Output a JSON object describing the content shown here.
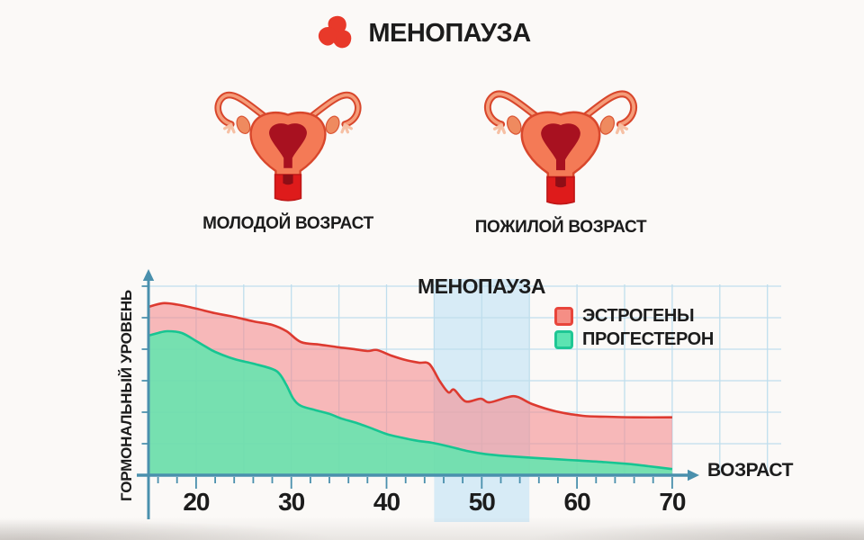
{
  "header": {
    "title": "МЕНОПАУЗА"
  },
  "illustrations": [
    {
      "label": "МОЛОДОЙ ВОЗРАСТ"
    },
    {
      "label": "ПОЖИЛОЙ ВОЗРАСТ"
    }
  ],
  "chart_data": {
    "type": "area",
    "title": "МЕНОПАУЗА",
    "xlabel": "ВОЗРАСТ",
    "ylabel": "ГОРМОНАЛЬНЫЙ УРОВЕНЬ",
    "x_ticks": [
      20,
      30,
      40,
      50,
      60,
      70
    ],
    "x_range": [
      15,
      70
    ],
    "y_range": [
      0,
      100
    ],
    "grid": true,
    "legend_position": "top-right",
    "annotation_band": {
      "label": "МЕНОПАУЗА",
      "from_age": 45,
      "to_age": 55
    },
    "legend": [
      {
        "label": "ЭСТРОГЕНЫ",
        "swatch_fill": "#f58e85",
        "swatch_border": "#e8453b"
      },
      {
        "label": "ПРОГЕСТЕРОН",
        "swatch_fill": "#5ce4b2",
        "swatch_border": "#1fc795"
      }
    ],
    "series": [
      {
        "name": "ЭСТРОГЕНЫ",
        "x": [
          15,
          16.5,
          18,
          20,
          22,
          24,
          26,
          28,
          29.5,
          31,
          33,
          35,
          36.5,
          38,
          39,
          40.5,
          42,
          43.4,
          44.5,
          45.6,
          46.5,
          47.1,
          48.3,
          49.9,
          50.8,
          52.8,
          53.8,
          55.3,
          57.8,
          60.6,
          63,
          66,
          70
        ],
        "values": [
          87.8,
          89.7,
          89.0,
          86.9,
          84.5,
          82.6,
          80.3,
          78.4,
          75.1,
          69.5,
          68.1,
          66.7,
          65.8,
          64.8,
          65.3,
          62.4,
          60.1,
          58.7,
          58.0,
          49.0,
          43.2,
          44.6,
          38.5,
          39.9,
          38.0,
          40.8,
          40.8,
          37.1,
          33.3,
          31.0,
          30.5,
          30.2,
          30.2
        ]
      },
      {
        "name": "ПРОГЕСТЕРОН",
        "x": [
          15,
          16,
          17,
          18.5,
          20,
          21,
          22,
          24,
          26,
          28,
          28.8,
          29.5,
          30.2,
          31,
          32.5,
          34,
          35.3,
          37,
          38.4,
          40,
          41.7,
          43.2,
          44.8,
          46.7,
          48.6,
          50.4,
          52.5,
          55,
          58,
          60,
          63,
          65.5,
          67.5,
          70
        ],
        "values": [
          72.8,
          74.2,
          75.1,
          74.2,
          70.0,
          67.1,
          64.3,
          60.6,
          58.2,
          55.4,
          52.6,
          46.9,
          40.0,
          36.2,
          34.0,
          32.0,
          29.5,
          27.0,
          24.5,
          21.5,
          19.5,
          18.0,
          16.9,
          14.8,
          12.5,
          11.0,
          10.0,
          9.2,
          8.3,
          7.7,
          6.8,
          5.8,
          4.7,
          3.2
        ]
      }
    ]
  },
  "colors": {
    "estrogen_line": "#dd3a30",
    "estrogen_fill": "#f48f93",
    "progesterone_line": "#17c592",
    "progesterone_fill": "#5fe6ae",
    "axis": "#4a90ad",
    "grid": "#bfdeed",
    "menopause_band": "#d7ebf6",
    "text": "#1c1c1c",
    "background": "#fbf9f7",
    "logo_red": "#e8392a",
    "logo_green": "#35a040",
    "logo_blue": "#2254c5"
  }
}
